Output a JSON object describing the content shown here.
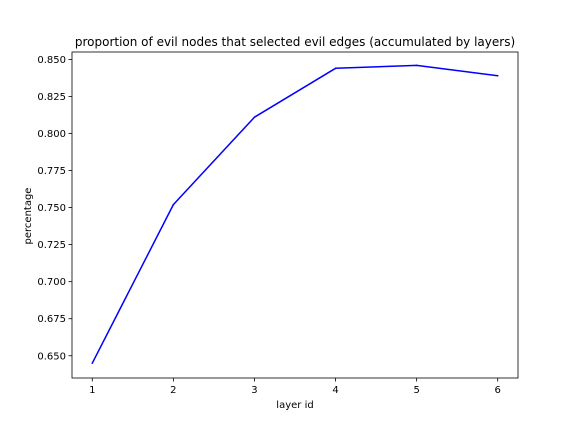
{
  "chart_data": {
    "type": "line",
    "title": "proportion of evil nodes that selected evil edges (accumulated by layers)",
    "xlabel": "layer id",
    "ylabel": "percentage",
    "x": [
      1,
      2,
      3,
      4,
      5,
      6
    ],
    "series": [
      {
        "values": [
          0.645,
          0.752,
          0.811,
          0.844,
          0.846,
          0.839
        ],
        "color": "#0000ff"
      }
    ],
    "xlim": [
      0.75,
      6.25
    ],
    "ylim": [
      0.635,
      0.855
    ],
    "xticks": [
      1,
      2,
      3,
      4,
      5,
      6
    ],
    "yticks": [
      0.65,
      0.675,
      0.7,
      0.725,
      0.75,
      0.775,
      0.8,
      0.825,
      0.85
    ],
    "ytick_labels": [
      "0.650",
      "0.675",
      "0.700",
      "0.725",
      "0.750",
      "0.775",
      "0.800",
      "0.825",
      "0.850"
    ],
    "grid": false,
    "legend": "none"
  }
}
